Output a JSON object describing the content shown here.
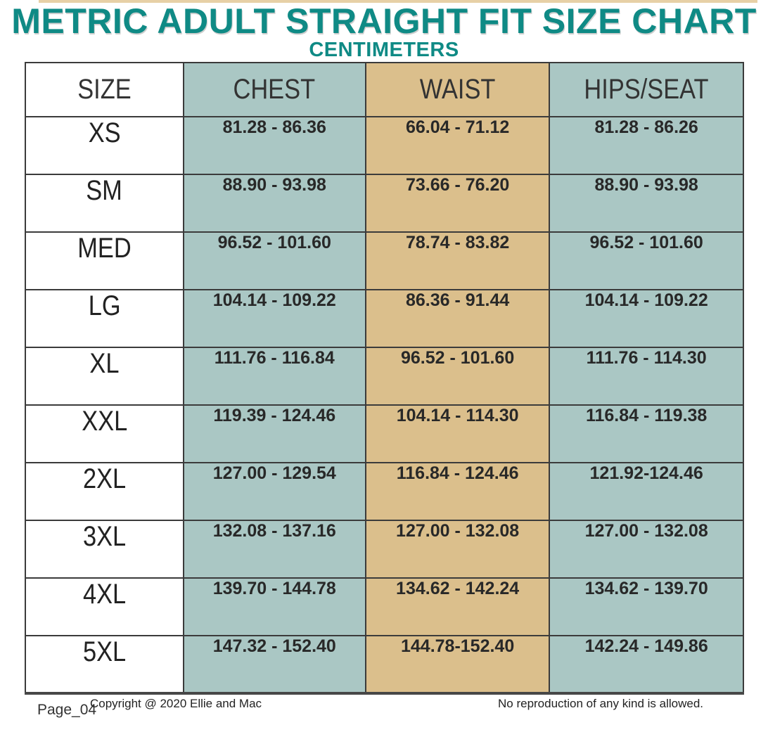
{
  "page": {
    "title": "METRIC ADULT STRAIGHT FIT SIZE CHART",
    "subtitle": "CENTIMETERS"
  },
  "colors": {
    "accent_teal": "#0f8a85",
    "column_blue": "#aac7c4",
    "column_tan": "#dbbf8c"
  },
  "table": {
    "headers": {
      "size": "SIZE",
      "chest": "CHEST",
      "waist": "WAIST",
      "hips": "HIPS/SEAT"
    },
    "rows": [
      {
        "size": "XS",
        "chest": "81.28 - 86.36",
        "waist": "66.04 - 71.12",
        "hips": "81.28 - 86.26"
      },
      {
        "size": "SM",
        "chest": "88.90 - 93.98",
        "waist": "73.66 - 76.20",
        "hips": "88.90 - 93.98"
      },
      {
        "size": "MED",
        "chest": "96.52 - 101.60",
        "waist": "78.74 - 83.82",
        "hips": "96.52 - 101.60"
      },
      {
        "size": "LG",
        "chest": "104.14 - 109.22",
        "waist": "86.36 - 91.44",
        "hips": "104.14 - 109.22"
      },
      {
        "size": "XL",
        "chest": "111.76 - 116.84",
        "waist": "96.52 - 101.60",
        "hips": "111.76 - 114.30"
      },
      {
        "size": "XXL",
        "chest": "119.39 - 124.46",
        "waist": "104.14 - 114.30",
        "hips": "116.84 - 119.38"
      },
      {
        "size": "2XL",
        "chest": "127.00 - 129.54",
        "waist": "116.84 - 124.46",
        "hips": "121.92-124.46"
      },
      {
        "size": "3XL",
        "chest": "132.08 - 137.16",
        "waist": "127.00 - 132.08",
        "hips": "127.00 - 132.08"
      },
      {
        "size": "4XL",
        "chest": "139.70 - 144.78",
        "waist": "134.62 - 142.24",
        "hips": "134.62 - 139.70"
      },
      {
        "size": "5XL",
        "chest": "147.32 - 152.40",
        "waist": "144.78-152.40",
        "hips": "142.24 - 149.86"
      }
    ]
  },
  "footer": {
    "page_label": "Page_04",
    "copyright": "Copyright @ 2020 Ellie and Mac",
    "notice": "No reproduction of any kind is allowed."
  }
}
